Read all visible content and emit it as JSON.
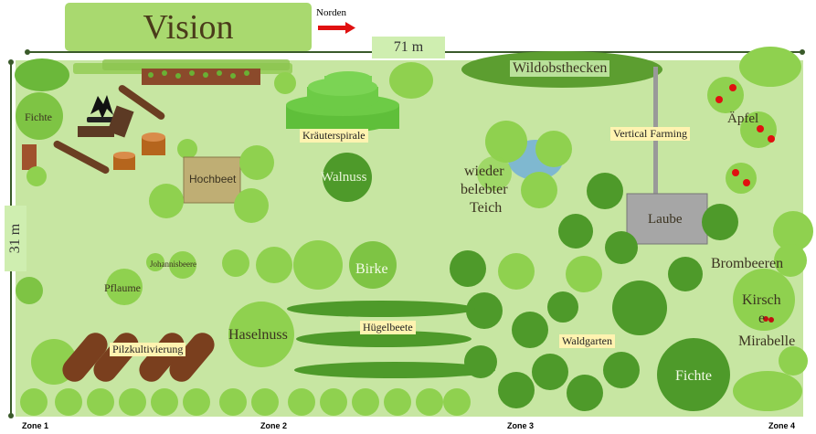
{
  "title": "Vision",
  "north_label": "Norden",
  "width_label": "71 m",
  "height_label": "31 m",
  "labels": {
    "fichte_left": "Fichte",
    "hochbeet": "Hochbeet",
    "kraeuterspirale": "Kräuterspirale",
    "walnuss": "Walnuss",
    "wildobsthecken": "Wildobsthecken",
    "aepfel": "Äpfel",
    "vertical_farming": "Vertical Farming",
    "teich_line1": "wieder",
    "teich_line2": "belebter",
    "teich_line3": "Teich",
    "laube": "Laube",
    "johannisbeere": "Johannisbeere",
    "birke": "Birke",
    "brombeeren": "Brombeeren",
    "pflaume": "Pflaume",
    "haselnuss": "Haselnuss",
    "huegelbeete": "Hügelbeete",
    "kirsche_line1": "Kirsch",
    "kirsche_line2": "e",
    "mirabelle": "Mirabelle",
    "pilzkultivierung": "Pilzkultivierung",
    "waldgarten": "Waldgarten",
    "fichte_right": "Fichte"
  },
  "zones": [
    "Zone 1",
    "Zone 2",
    "Zone 3",
    "Zone 4"
  ],
  "colors": {
    "field": "#c7e6a2",
    "title_bg": "#a9d96f",
    "tree_light": "#8fd14f",
    "tree_mid": "#6bb83a",
    "tree_dark": "#4e9a2a",
    "north_arrow": "#e01010",
    "highlight": "#fff3b0"
  },
  "icons": [
    "campfire-icon",
    "north-arrow-icon",
    "apple-icon",
    "cherry-icon",
    "log-icon",
    "tree-stump-icon"
  ]
}
